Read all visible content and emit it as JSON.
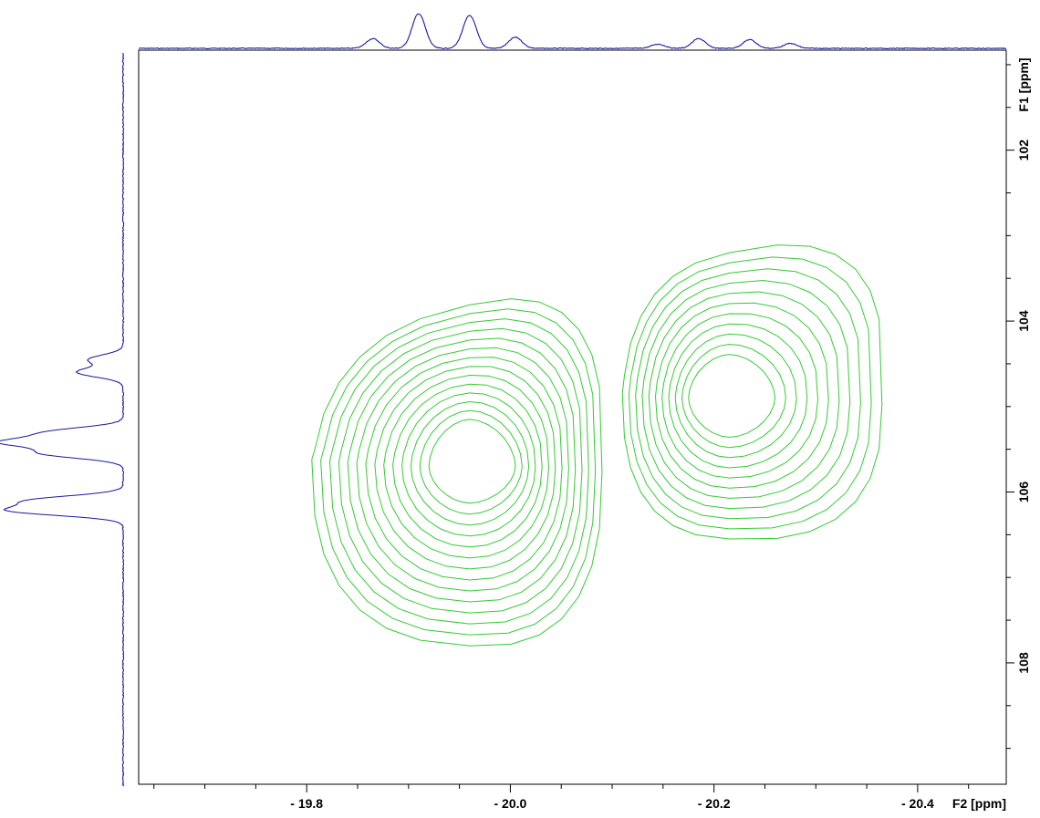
{
  "chart_data": {
    "type": "contour",
    "title": "",
    "xlabel": "F2 [ppm]",
    "ylabel": "F1 [ppm]",
    "xlim": [
      -19.635,
      -20.487
    ],
    "ylim": [
      100.83,
      109.42
    ],
    "x_reversed": true,
    "y_reversed": true,
    "x_ticks": [
      -19.8,
      -20.0,
      -20.2,
      -20.4
    ],
    "x_tick_labels": [
      "- 19.8",
      "- 20.0",
      "- 20.2",
      "- 20.4"
    ],
    "y_ticks": [
      102,
      104,
      106,
      108
    ],
    "y_tick_labels": [
      "102",
      "104",
      "106",
      "108"
    ],
    "grid": false,
    "contour_color": "#33cc33",
    "projection_color": "#1a1aa0",
    "peaks": [
      {
        "center_F2": -19.96,
        "center_F1": 105.7,
        "levels": 14,
        "outer_F2": [
          -19.805,
          -20.09
        ],
        "outer_F1": [
          103.81,
          107.8
        ],
        "inner_F2": [
          -19.92,
          -20.005
        ],
        "inner_F1": [
          105.15,
          106.13
        ]
      },
      {
        "center_F2": -20.215,
        "center_F1": 104.9,
        "levels": 11,
        "outer_F2": [
          -20.11,
          -20.365
        ],
        "outer_F1": [
          103.2,
          106.55
        ],
        "inner_F2": [
          -20.175,
          -20.26
        ],
        "inner_F1": [
          104.39,
          105.36
        ]
      }
    ],
    "projection_F2": {
      "peaks": [
        {
          "position": -19.865,
          "height": 0.28
        },
        {
          "position": -19.91,
          "height": 1.0
        },
        {
          "position": -19.96,
          "height": 0.95
        },
        {
          "position": -20.005,
          "height": 0.32
        },
        {
          "position": -20.145,
          "height": 0.12
        },
        {
          "position": -20.185,
          "height": 0.28
        },
        {
          "position": -20.235,
          "height": 0.25
        },
        {
          "position": -20.275,
          "height": 0.14
        }
      ]
    },
    "projection_F1": {
      "peaks": [
        {
          "position": 104.45,
          "height": 0.3
        },
        {
          "position": 104.6,
          "height": 0.4
        },
        {
          "position": 105.3,
          "height": 0.62
        },
        {
          "position": 105.42,
          "height": 1.0
        },
        {
          "position": 105.55,
          "height": 0.68
        },
        {
          "position": 106.1,
          "height": 0.78
        },
        {
          "position": 106.22,
          "height": 0.95
        }
      ]
    }
  }
}
